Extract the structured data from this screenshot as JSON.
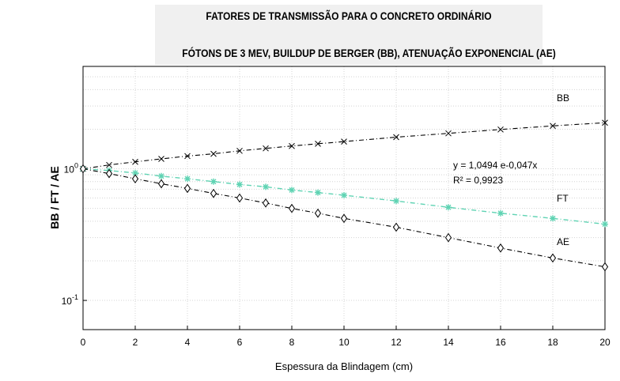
{
  "chart_data": {
    "type": "line",
    "title": "FATORES DE TRANSMISSÃO PARA O CONCRETO ORDINÁRIO",
    "subtitle": "FÓTONS DE 3 MEV, BUILDUP DE BERGER (BB), ATENUAÇÃO EXPONENCIAL (AE)",
    "xlabel": "Espessura da Blindagem (cm)",
    "ylabel": "BB / FT / AE",
    "xlim": [
      0,
      20
    ],
    "ylim": [
      0.06,
      6
    ],
    "yscale": "log",
    "grid": true,
    "x_ticks": [
      "0",
      "2",
      "4",
      "6",
      "8",
      "10",
      "12",
      "14",
      "16",
      "18",
      "20"
    ],
    "y_ticks": [
      {
        "base": "10",
        "exp": "0",
        "value": 1
      },
      {
        "base": "10",
        "exp": "-1",
        "value": 0.1
      }
    ],
    "series": [
      {
        "name": "BB",
        "color": "#000000",
        "marker": "x",
        "x": [
          0,
          1,
          2,
          3,
          4,
          5,
          6,
          7,
          8,
          9,
          10,
          12,
          14,
          16,
          18,
          20
        ],
        "values": [
          1.0,
          1.07,
          1.13,
          1.19,
          1.25,
          1.3,
          1.37,
          1.43,
          1.49,
          1.55,
          1.61,
          1.74,
          1.86,
          1.99,
          2.12,
          2.24
        ]
      },
      {
        "name": "FT",
        "color": "#5fd3b3",
        "marker": "star",
        "x": [
          0,
          1,
          2,
          3,
          4,
          5,
          6,
          7,
          8,
          9,
          10,
          12,
          14,
          16,
          18,
          20
        ],
        "values": [
          1.0,
          0.97,
          0.93,
          0.88,
          0.84,
          0.8,
          0.76,
          0.73,
          0.69,
          0.66,
          0.63,
          0.57,
          0.51,
          0.46,
          0.42,
          0.38
        ]
      },
      {
        "name": "AE",
        "color": "#000000",
        "marker": "diamond",
        "x": [
          0,
          1,
          2,
          3,
          4,
          5,
          6,
          7,
          8,
          9,
          10,
          12,
          14,
          16,
          18,
          20
        ],
        "values": [
          1.0,
          0.92,
          0.84,
          0.77,
          0.71,
          0.65,
          0.6,
          0.55,
          0.5,
          0.46,
          0.42,
          0.36,
          0.3,
          0.25,
          0.21,
          0.18
        ]
      }
    ],
    "fit": {
      "series": "FT",
      "equation": "y = 1,0494 e-0,047x",
      "r2": "R² = 0,9923"
    }
  }
}
